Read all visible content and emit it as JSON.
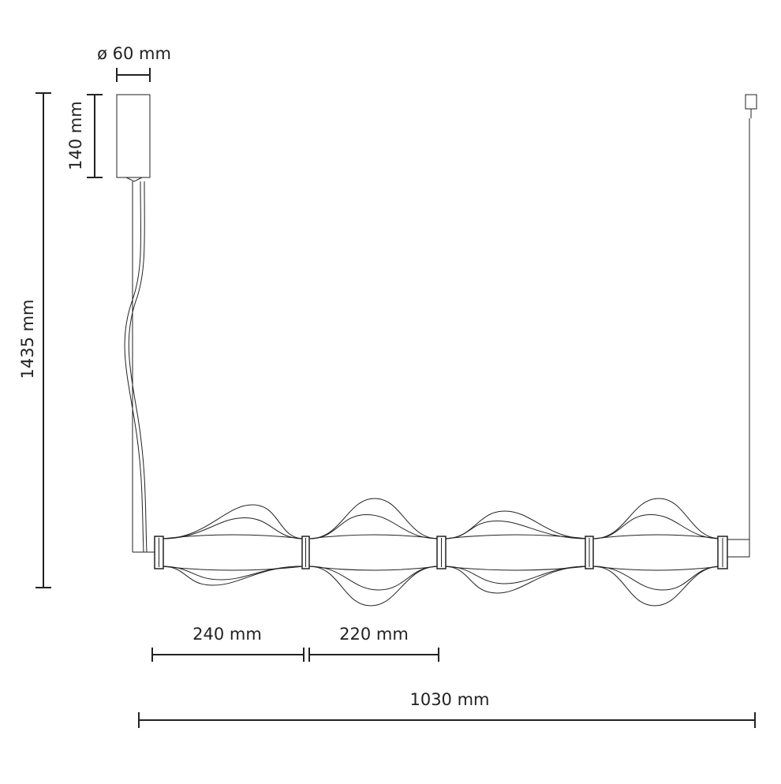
{
  "dimensions": {
    "canopy_diameter": "ø 60 mm",
    "canopy_height": "140 mm",
    "total_height": "1435 mm",
    "end_segment": "240 mm",
    "segment": "220 mm",
    "total_length": "1030 mm"
  }
}
